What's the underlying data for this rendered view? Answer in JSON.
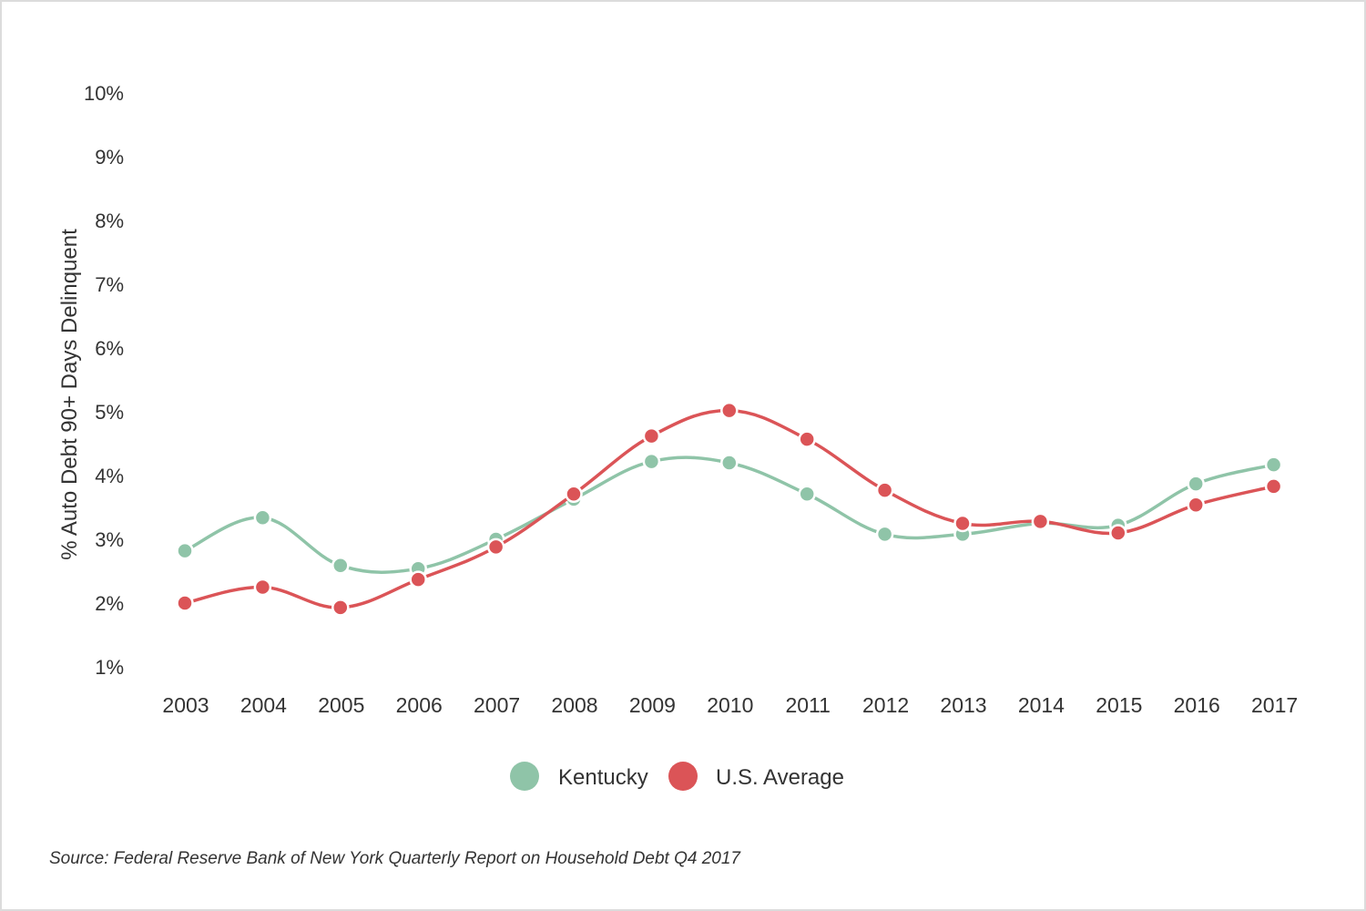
{
  "chart_data": {
    "type": "line",
    "xlabel": "",
    "ylabel": "% Auto Debt 90+ Days Delinquent",
    "categories": [
      "2003",
      "2004",
      "2005",
      "2006",
      "2007",
      "2008",
      "2009",
      "2010",
      "2011",
      "2012",
      "2013",
      "2014",
      "2015",
      "2016",
      "2017"
    ],
    "y_ticks": [
      "1%",
      "2%",
      "3%",
      "4%",
      "5%",
      "6%",
      "7%",
      "8%",
      "9%",
      "10%"
    ],
    "ylim": [
      1,
      10
    ],
    "grid": false,
    "legend_position": "bottom",
    "series": [
      {
        "name": "Kentucky",
        "color": "#8fc4a8",
        "values": [
          2.82,
          3.34,
          2.59,
          2.54,
          3.0,
          3.63,
          4.22,
          4.2,
          3.71,
          3.08,
          3.08,
          3.25,
          3.22,
          3.87,
          4.17
        ]
      },
      {
        "name": "U.S. Average",
        "color": "#db5457",
        "values": [
          2.0,
          2.25,
          1.93,
          2.37,
          2.88,
          3.71,
          4.62,
          5.02,
          4.57,
          3.77,
          3.25,
          3.28,
          3.1,
          3.54,
          3.83
        ]
      }
    ]
  },
  "source": "Source: Federal Reserve Bank of New York Quarterly Report on Household Debt Q4 2017"
}
